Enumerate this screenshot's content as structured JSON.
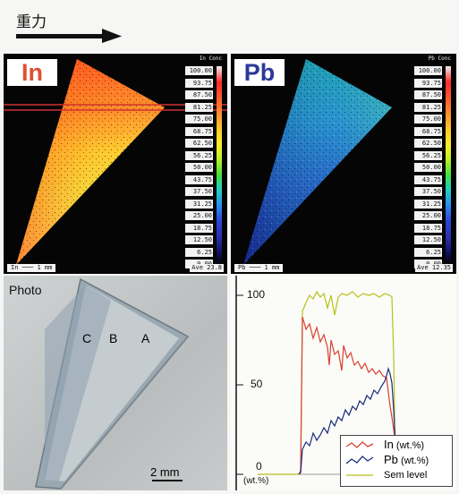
{
  "header": {
    "gravity_label": "重力"
  },
  "maps": [
    {
      "element": "In",
      "header_left": "In",
      "header_right": "Conc",
      "scale_text": "In ─── 1 mm",
      "ave_text": "Ave 23.8",
      "label_color": "#e05030"
    },
    {
      "element": "Pb",
      "header_left": "Pb",
      "header_right": "Conc",
      "scale_text": "Pb ─── 1 mm",
      "ave_text": "Ave 12.35",
      "label_color": "#2a3a9a"
    }
  ],
  "scale_ticks": [
    "100.00",
    "93.75",
    "87.50",
    "81.25",
    "75.00",
    "68.75",
    "62.50",
    "56.25",
    "50.00",
    "43.75",
    "37.50",
    "31.25",
    "25.00",
    "18.75",
    "12.50",
    "6.25",
    "0.00"
  ],
  "photo": {
    "title": "Photo",
    "point_c": "C",
    "point_b": "B",
    "point_a": "A",
    "scalebar": "2 mm"
  },
  "graph": {
    "y_top": "100",
    "y_mid": "50",
    "y_zero": "0",
    "y_unit": "(wt.%)",
    "legend": [
      {
        "label": "In",
        "unit": "(wt.%)",
        "color": "#d84030"
      },
      {
        "label": "Pb",
        "unit": "(wt.%)",
        "color": "#1a2a7a"
      },
      {
        "label": "Sem level",
        "unit": "",
        "color": "#b8c018"
      }
    ]
  }
}
